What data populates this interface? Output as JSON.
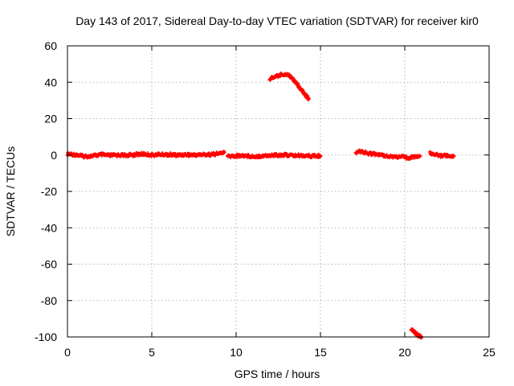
{
  "chart_data": {
    "type": "scatter",
    "title": "Day 143 of 2017, Sidereal Day-to-day VTEC variation (SDTVAR) for receiver kir0",
    "xlabel": "GPS time / hours",
    "ylabel": "SDTVAR / TECUs",
    "xlim": [
      0,
      25
    ],
    "ylim": [
      -100,
      60
    ],
    "x_ticks": [
      0,
      5,
      10,
      15,
      20,
      25
    ],
    "y_ticks": [
      -100,
      -80,
      -60,
      -40,
      -20,
      0,
      20,
      40,
      60
    ],
    "grid": true,
    "marker_color": "#ff0000",
    "series": [
      {
        "name": "main-0-9.3h",
        "points": [
          [
            0,
            0.5
          ],
          [
            0.5,
            0.2
          ],
          [
            1,
            -0.8
          ],
          [
            1.5,
            -0.5
          ],
          [
            2,
            0.2
          ],
          [
            2.5,
            -0.3
          ],
          [
            3,
            0
          ],
          [
            3.5,
            -0.2
          ],
          [
            4,
            0.2
          ],
          [
            4.5,
            0.6
          ],
          [
            5,
            0
          ],
          [
            5.5,
            0.3
          ],
          [
            6,
            0.2
          ],
          [
            6.5,
            -0.1
          ],
          [
            7,
            0.2
          ],
          [
            7.5,
            0
          ],
          [
            8,
            0.2
          ],
          [
            8.5,
            0.3
          ],
          [
            9,
            0.8
          ],
          [
            9.3,
            1.5
          ]
        ]
      },
      {
        "name": "main-9.5-15h",
        "points": [
          [
            9.5,
            -0.8
          ],
          [
            10,
            -0.5
          ],
          [
            10.5,
            -0.3
          ],
          [
            11,
            -0.8
          ],
          [
            11.5,
            -0.5
          ],
          [
            12,
            -0.3
          ],
          [
            12.5,
            0
          ],
          [
            13,
            0
          ],
          [
            13.5,
            -0.3
          ],
          [
            14,
            -0.3
          ],
          [
            14.5,
            -0.6
          ],
          [
            15,
            -0.5
          ]
        ]
      },
      {
        "name": "arc-12-14.3h",
        "points": [
          [
            12,
            42
          ],
          [
            12.3,
            43
          ],
          [
            12.6,
            44
          ],
          [
            12.9,
            44.5
          ],
          [
            13.1,
            44
          ],
          [
            13.3,
            42.5
          ],
          [
            13.5,
            40.5
          ],
          [
            13.7,
            38
          ],
          [
            13.9,
            35.5
          ],
          [
            14.1,
            33
          ],
          [
            14.3,
            31
          ]
        ]
      },
      {
        "name": "segment-17-20.9h",
        "points": [
          [
            17.1,
            1
          ],
          [
            17.4,
            2
          ],
          [
            17.8,
            1
          ],
          [
            18.2,
            0.5
          ],
          [
            18.6,
            0
          ],
          [
            19,
            -0.5
          ],
          [
            19.4,
            -1
          ],
          [
            19.8,
            -1
          ],
          [
            20.2,
            -1.5
          ],
          [
            20.6,
            -1
          ],
          [
            20.9,
            -0.5
          ]
        ]
      },
      {
        "name": "segment-21.5-22.9h",
        "points": [
          [
            21.5,
            1
          ],
          [
            21.8,
            0.5
          ],
          [
            22.1,
            -0.5
          ],
          [
            22.4,
            0
          ],
          [
            22.7,
            -1
          ],
          [
            22.9,
            -0.5
          ]
        ]
      },
      {
        "name": "drop-20.4-21h",
        "points": [
          [
            20.4,
            -95.5
          ],
          [
            20.55,
            -97
          ],
          [
            20.7,
            -98.5
          ],
          [
            20.85,
            -99.5
          ],
          [
            21,
            -100
          ]
        ]
      }
    ]
  }
}
